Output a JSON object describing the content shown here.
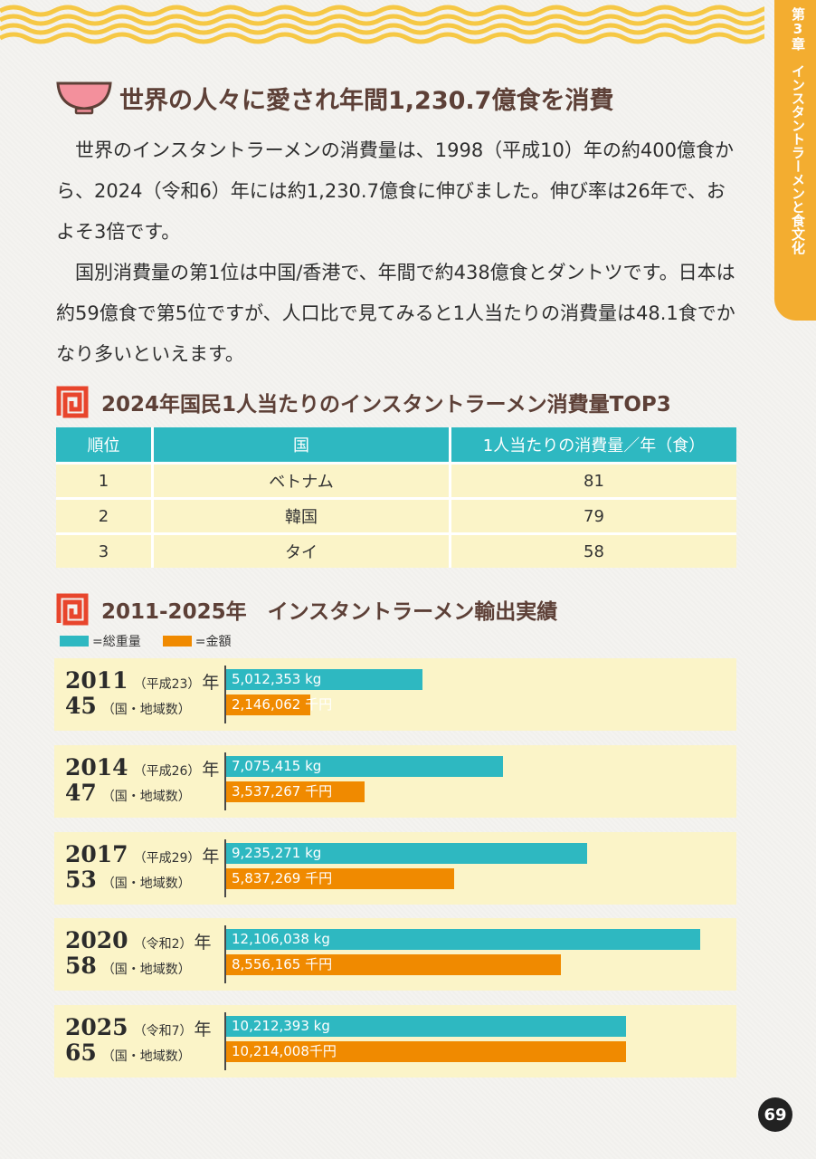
{
  "side_tab": "第3章　インスタントラーメンと食文化",
  "heading_main": "世界の人々に愛され年間1,230.7億食を消費",
  "paragraph1": "世界のインスタントラーメンの消費量は、1998（平成10）年の約400億食から、2024（令和6）年には約1,230.7億食に伸びました。伸び率は26年で、およそ3倍です。",
  "paragraph2": "国別消費量の第1位は中国/香港で、年間で約438億食とダントツです。日本は約59億食で第5位ですが、人口比で見てみると1人当たりの消費量は48.1食でかなり多いといえます。",
  "table_title": "2024年国民1人当たりのインスタントラーメン消費量TOP3",
  "table": {
    "headers": [
      "順位",
      "国",
      "1人当たりの消費量／年（食）"
    ],
    "rows": [
      [
        "1",
        "ベトナム",
        "81"
      ],
      [
        "2",
        "韓国",
        "79"
      ],
      [
        "3",
        "タイ",
        "58"
      ]
    ]
  },
  "chart_title": "2011-2025年　インスタントラーメン輸出実績",
  "legend": {
    "weight": "=総重量",
    "amount": "=金額"
  },
  "colors": {
    "teal": "#2eb8c1",
    "orange": "#f08a00",
    "cream": "#fbf4c8",
    "accent": "#e8452c",
    "tab": "#f3ad30"
  },
  "chart_data": {
    "type": "bar",
    "orientation": "horizontal",
    "title": "2011-2025年　インスタントラーメン輸出実績",
    "series_names": [
      "=総重量",
      "=金額"
    ],
    "groups": [
      {
        "year": "2011",
        "era": "（平成23）",
        "nen": "年",
        "countries": "45",
        "countries_label": "（国・地域数）",
        "weight_kg": 5012353,
        "weight_label": "5,012,353 kg",
        "amount_sen_yen": 2146062,
        "amount_label": "2,146,062 千円"
      },
      {
        "year": "2014",
        "era": "（平成26）",
        "nen": "年",
        "countries": "47",
        "countries_label": "（国・地域数）",
        "weight_kg": 7075415,
        "weight_label": "7,075,415 kg",
        "amount_sen_yen": 3537267,
        "amount_label": "3,537,267 千円"
      },
      {
        "year": "2017",
        "era": "（平成29）",
        "nen": "年",
        "countries": "53",
        "countries_label": "（国・地域数）",
        "weight_kg": 9235271,
        "weight_label": "9,235,271 kg",
        "amount_sen_yen": 5837269,
        "amount_label": "5,837,269 千円"
      },
      {
        "year": "2020",
        "era": "（令和2）",
        "nen": "年",
        "countries": "58",
        "countries_label": "（国・地域数）",
        "weight_kg": 12106038,
        "weight_label": "12,106,038 kg",
        "amount_sen_yen": 8556165,
        "amount_label": "8,556,165 千円"
      },
      {
        "year": "2025",
        "era": "（令和7）",
        "nen": "年",
        "countries": "65",
        "countries_label": "（国・地域数）",
        "weight_kg": 10212393,
        "weight_label": "10,212,393 kg",
        "amount_sen_yen": 10214008,
        "amount_label": "10,214,008千円"
      }
    ]
  },
  "page_number": "69"
}
